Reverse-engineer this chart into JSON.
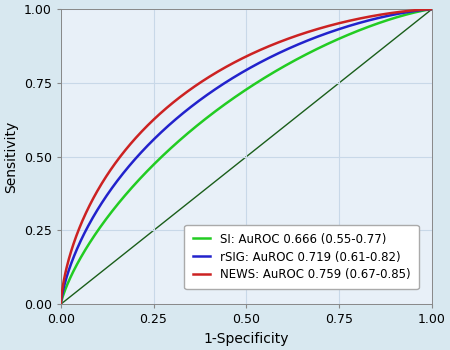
{
  "title": "",
  "xlabel": "1-Specificity",
  "ylabel": "Sensitivity",
  "xlim": [
    0.0,
    1.0
  ],
  "ylim": [
    0.0,
    1.0
  ],
  "xticks": [
    0.0,
    0.25,
    0.5,
    0.75,
    1.0
  ],
  "yticks": [
    0.0,
    0.25,
    0.5,
    0.75,
    1.0
  ],
  "background_color": "#d8e8f0",
  "plot_background_color": "#e8f0f8",
  "grid_color": "#c8d8e8",
  "diagonal_color": "#1a5e1a",
  "curves": [
    {
      "label": "SI: AuROC 0.666 (0.55-0.77)",
      "color": "#22cc22",
      "alpha": 2.5,
      "beta": 2.5
    },
    {
      "label": "rSIG: AuROC 0.719 (0.61-0.82)",
      "color": "#2222cc",
      "alpha": 2.5,
      "beta": 2.5
    },
    {
      "label": "NEWS: AuROC 0.759 (0.67-0.85)",
      "color": "#cc2222",
      "alpha": 2.5,
      "beta": 2.5
    }
  ],
  "legend_fontsize": 8.5,
  "axis_label_fontsize": 10,
  "tick_fontsize": 9,
  "linewidth": 1.8,
  "diagonal_linewidth": 1.0,
  "figwidth": 4.5,
  "figheight": 3.5
}
